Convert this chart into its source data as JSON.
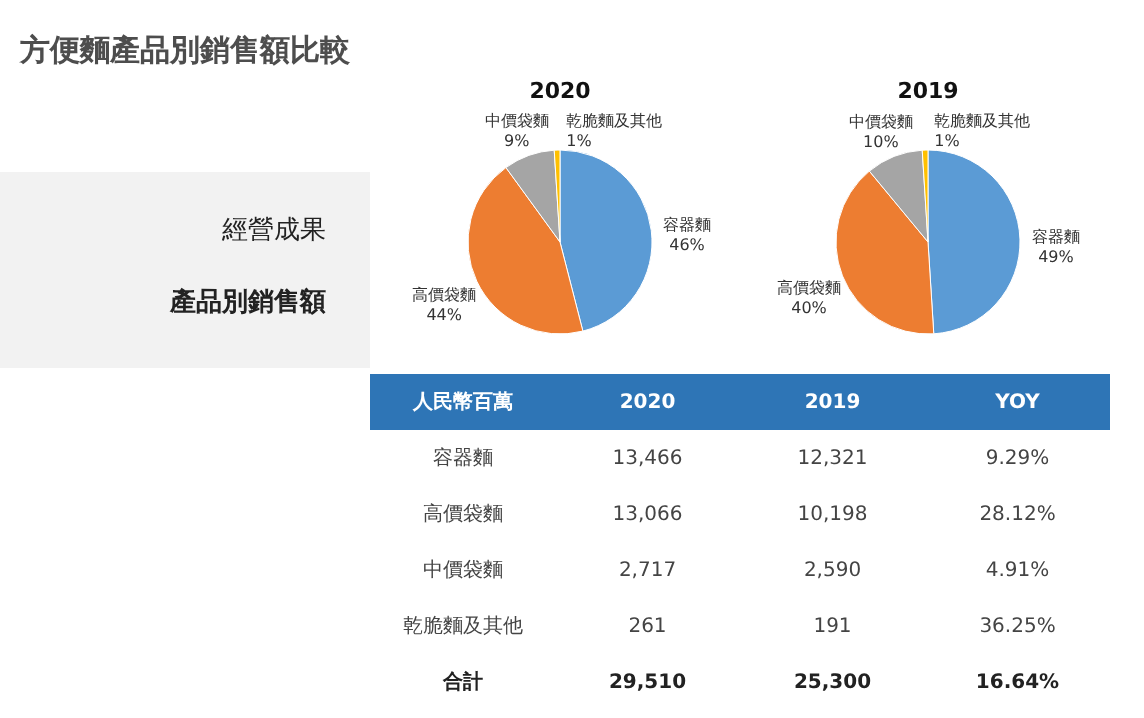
{
  "chart_data": [
    {
      "type": "other",
      "title": "方便麵產品別銷售額比較",
      "annotations": [
        "經營成果",
        "產品別銷售額"
      ]
    },
    {
      "type": "pie",
      "title": "2020",
      "categories": [
        "容器麵",
        "高價袋麵",
        "中價袋麵",
        "乾脆麵及其他"
      ],
      "values": [
        46,
        44,
        9,
        1
      ],
      "colors": [
        "#5b9bd5",
        "#ed7d31",
        "#a5a5a5",
        "#ffc000"
      ],
      "value_labels": [
        "46%",
        "44%",
        "9%",
        "1%"
      ]
    },
    {
      "type": "pie",
      "title": "2019",
      "categories": [
        "容器麵",
        "高價袋麵",
        "中價袋麵",
        "乾脆麵及其他"
      ],
      "values": [
        49,
        40,
        10,
        1
      ],
      "colors": [
        "#5b9bd5",
        "#ed7d31",
        "#a5a5a5",
        "#ffc000"
      ],
      "value_labels": [
        "49%",
        "40%",
        "10%",
        "1%"
      ]
    },
    {
      "type": "other",
      "ylabel": "人民幣百萬",
      "categories": [
        "容器麵",
        "高價袋麵",
        "中價袋麵",
        "乾脆麵及其他",
        "合計"
      ],
      "series": [
        {
          "name": "2020",
          "values": [
            13466,
            13066,
            2717,
            261,
            29510
          ],
          "value_labels": [
            "13,466",
            "13,066",
            "2,717",
            "261",
            "29,510"
          ]
        },
        {
          "name": "2019",
          "values": [
            12321,
            10198,
            2590,
            191,
            25300
          ],
          "value_labels": [
            "12,321",
            "10,198",
            "2,590",
            "191",
            "25,300"
          ]
        },
        {
          "name": "YOY",
          "values": [
            9.29,
            28.12,
            4.91,
            36.25,
            16.64
          ],
          "value_labels": [
            "9.29%",
            "28.12%",
            "4.91%",
            "36.25%",
            "16.64%"
          ]
        }
      ]
    }
  ]
}
